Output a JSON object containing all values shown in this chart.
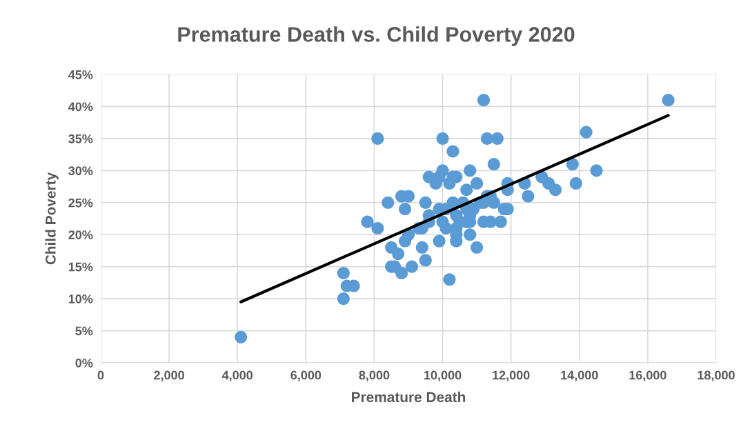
{
  "chart_data": {
    "type": "scatter",
    "title": "Premature Death vs. Child Poverty 2020",
    "xlabel": "Premature Death",
    "ylabel": "Child Poverty",
    "xlim": [
      0,
      18000
    ],
    "xticks": [
      0,
      {
        "value": 2000,
        "label": "2,000"
      },
      {
        "value": 4000,
        "label": "4,000"
      },
      {
        "value": 6000,
        "label": "6,000"
      },
      {
        "value": 8000,
        "label": "8,000"
      },
      {
        "value": 10000,
        "label": "10,000"
      },
      {
        "value": 12000,
        "label": "12,000"
      },
      {
        "value": 14000,
        "label": "14,000"
      },
      {
        "value": 16000,
        "label": "16,000"
      },
      {
        "value": 18000,
        "label": "18,000"
      }
    ],
    "ylim": [
      0,
      45
    ],
    "yticks": [
      {
        "value": 0,
        "label": "0%"
      },
      {
        "value": 5,
        "label": "5%"
      },
      {
        "value": 10,
        "label": "10%"
      },
      {
        "value": 15,
        "label": "15%"
      },
      {
        "value": 20,
        "label": "20%"
      },
      {
        "value": 25,
        "label": "25%"
      },
      {
        "value": 30,
        "label": "30%"
      },
      {
        "value": 35,
        "label": "35%"
      },
      {
        "value": 40,
        "label": "40%"
      },
      {
        "value": 45,
        "label": "45%"
      }
    ],
    "grid": true,
    "marker": "circle",
    "series": [
      {
        "color": "#5b9bd5",
        "x": [
          4100,
          7100,
          7100,
          7200,
          7400,
          7800,
          8100,
          8100,
          8400,
          8500,
          8500,
          8600,
          8700,
          8800,
          8800,
          8900,
          8900,
          9000,
          9000,
          9100,
          9300,
          9400,
          9400,
          9500,
          9500,
          9600,
          9600,
          9600,
          9800,
          9900,
          9900,
          9900,
          10000,
          10000,
          10000,
          10100,
          10100,
          10200,
          10200,
          10300,
          10300,
          10300,
          10400,
          10400,
          10400,
          10400,
          10400,
          10500,
          10600,
          10700,
          10700,
          10700,
          10800,
          10800,
          10800,
          10800,
          10900,
          11000,
          11000,
          11100,
          11200,
          11200,
          11200,
          11300,
          11300,
          11400,
          11400,
          11500,
          11500,
          11600,
          11700,
          11800,
          11900,
          11900,
          11900,
          12400,
          12500,
          12900,
          13100,
          13300,
          13800,
          13900,
          14200,
          14500,
          16600
        ],
        "values": [
          4,
          14,
          10,
          12,
          12,
          22,
          21,
          35,
          25,
          18,
          15,
          15,
          17,
          26,
          14,
          24,
          19,
          26,
          20,
          15,
          21,
          21,
          18,
          25,
          16,
          29,
          23,
          22,
          28,
          29,
          24,
          19,
          35,
          30,
          22,
          24,
          21,
          28,
          13,
          33,
          29,
          25,
          29,
          23,
          21,
          20,
          19,
          22,
          25,
          27,
          24,
          22,
          30,
          23,
          22,
          20,
          24,
          28,
          18,
          25,
          41,
          25,
          22,
          35,
          26,
          26,
          22,
          31,
          25,
          35,
          22,
          24,
          28,
          27,
          24,
          28,
          26,
          29,
          28,
          27,
          31,
          28,
          36,
          30,
          41
        ]
      },
      {
        "type": "line",
        "color": "#000000",
        "line_style": "solid",
        "marker": "none",
        "x": [
          4100,
          16600
        ],
        "values": [
          9.5,
          38.6
        ]
      }
    ]
  }
}
